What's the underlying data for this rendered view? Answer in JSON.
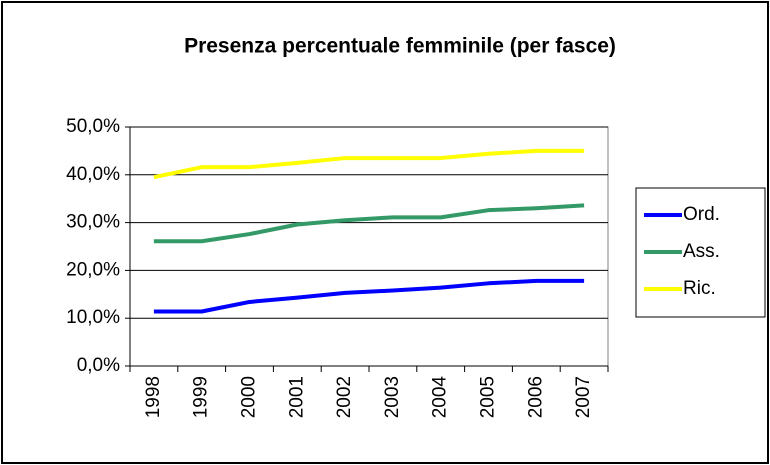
{
  "chart_data": {
    "type": "line",
    "title": "Presenza percentuale femminile (per fasce)",
    "categories": [
      "1998",
      "1999",
      "2000",
      "2001",
      "2002",
      "2003",
      "2004",
      "2005",
      "2006",
      "2007"
    ],
    "series": [
      {
        "name": "Ord.",
        "color": "#0000ff",
        "values": [
          11.4,
          11.4,
          13.4,
          14.3,
          15.3,
          15.8,
          16.4,
          17.3,
          17.8,
          17.8
        ]
      },
      {
        "name": "Ass.",
        "color": "#339966",
        "values": [
          26.1,
          26.1,
          27.6,
          29.6,
          30.5,
          31.1,
          31.1,
          32.6,
          33.0,
          33.6
        ]
      },
      {
        "name": "Ric.",
        "color": "#ffff00",
        "values": [
          39.5,
          41.6,
          41.6,
          42.5,
          43.5,
          43.5,
          43.5,
          44.4,
          45.0,
          45.0
        ]
      }
    ],
    "ylim": [
      0,
      50
    ],
    "yticks": [
      {
        "value": 0,
        "label": "0,0%"
      },
      {
        "value": 10,
        "label": "10,0%"
      },
      {
        "value": 20,
        "label": "20,0%"
      },
      {
        "value": 30,
        "label": "30,0%"
      },
      {
        "value": 40,
        "label": "40,0%"
      },
      {
        "value": 50,
        "label": "50,0%"
      }
    ],
    "grid": true,
    "legend": "right"
  }
}
